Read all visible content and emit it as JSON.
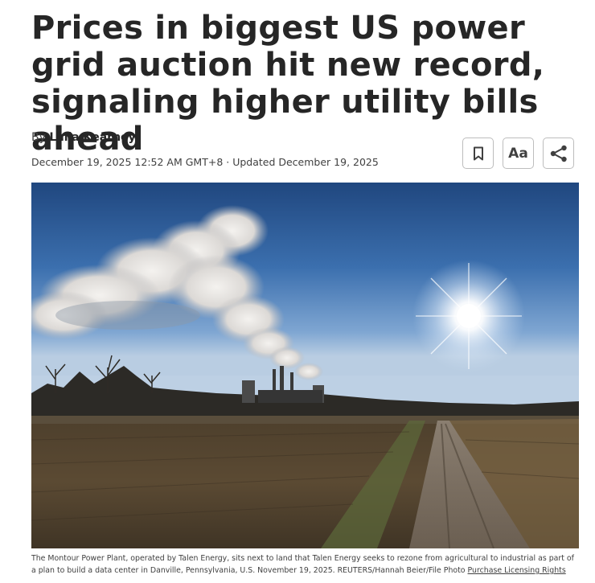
{
  "article": {
    "headline": "Prices in biggest US power grid auction hit new record, signaling higher utility bills ahead",
    "byline_prefix": "By",
    "author": "Laila Kearney",
    "dateline": "December 19, 2025 12:52 AM GMT+8 · Updated December 19, 2025"
  },
  "toolbar": {
    "bookmark_icon": "bookmark-icon",
    "text_size_label": "Aa",
    "share_icon": "share-icon"
  },
  "image": {
    "subject": "power-plant-smokestacks-field",
    "caption": "The Montour Power Plant, operated by Talen Energy, sits next to land that Talen Energy seeks to rezone from agricultural to industrial as part of a plan to build a data center in Danville, Pennsylvania, U.S. November 19, 2025. REUTERS/Hannah Beier/File Photo",
    "licensing_link": "Purchase Licensing Rights"
  },
  "colors": {
    "text": "#262626",
    "muted": "#404040",
    "border": "#bdbdbd"
  }
}
